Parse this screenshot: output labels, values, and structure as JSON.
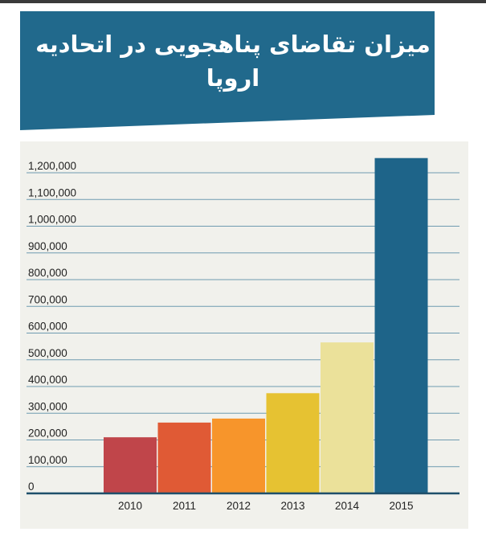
{
  "header": {
    "title": "میزان تقاضای پناهجویی در اتحادیه اروپا",
    "background_color": "#21698c"
  },
  "chart_data": {
    "type": "bar",
    "title": "میزان تقاضای پناهجویی در اتحادیه اروپا",
    "xlabel": "",
    "ylabel": "",
    "categories": [
      "2010",
      "2011",
      "2012",
      "2013",
      "2014",
      "2015"
    ],
    "values": [
      210000,
      265000,
      280000,
      375000,
      565000,
      1255000
    ],
    "colors": [
      "#c0454a",
      "#e05a35",
      "#f7952b",
      "#e6c232",
      "#ebe19a",
      "#1e6489"
    ],
    "ylim": [
      0,
      1200000
    ],
    "yticks": [
      0,
      100000,
      200000,
      300000,
      400000,
      500000,
      600000,
      700000,
      800000,
      900000,
      1000000,
      1100000,
      1200000
    ],
    "ytick_labels": [
      "0",
      "100,000",
      "200,000",
      "300,000",
      "400,000",
      "500,000",
      "600,000",
      "700,000",
      "800,000",
      "900,000",
      "1,000,000",
      "1,100,000",
      "1,200,000"
    ],
    "grid": true,
    "legend": "none"
  }
}
